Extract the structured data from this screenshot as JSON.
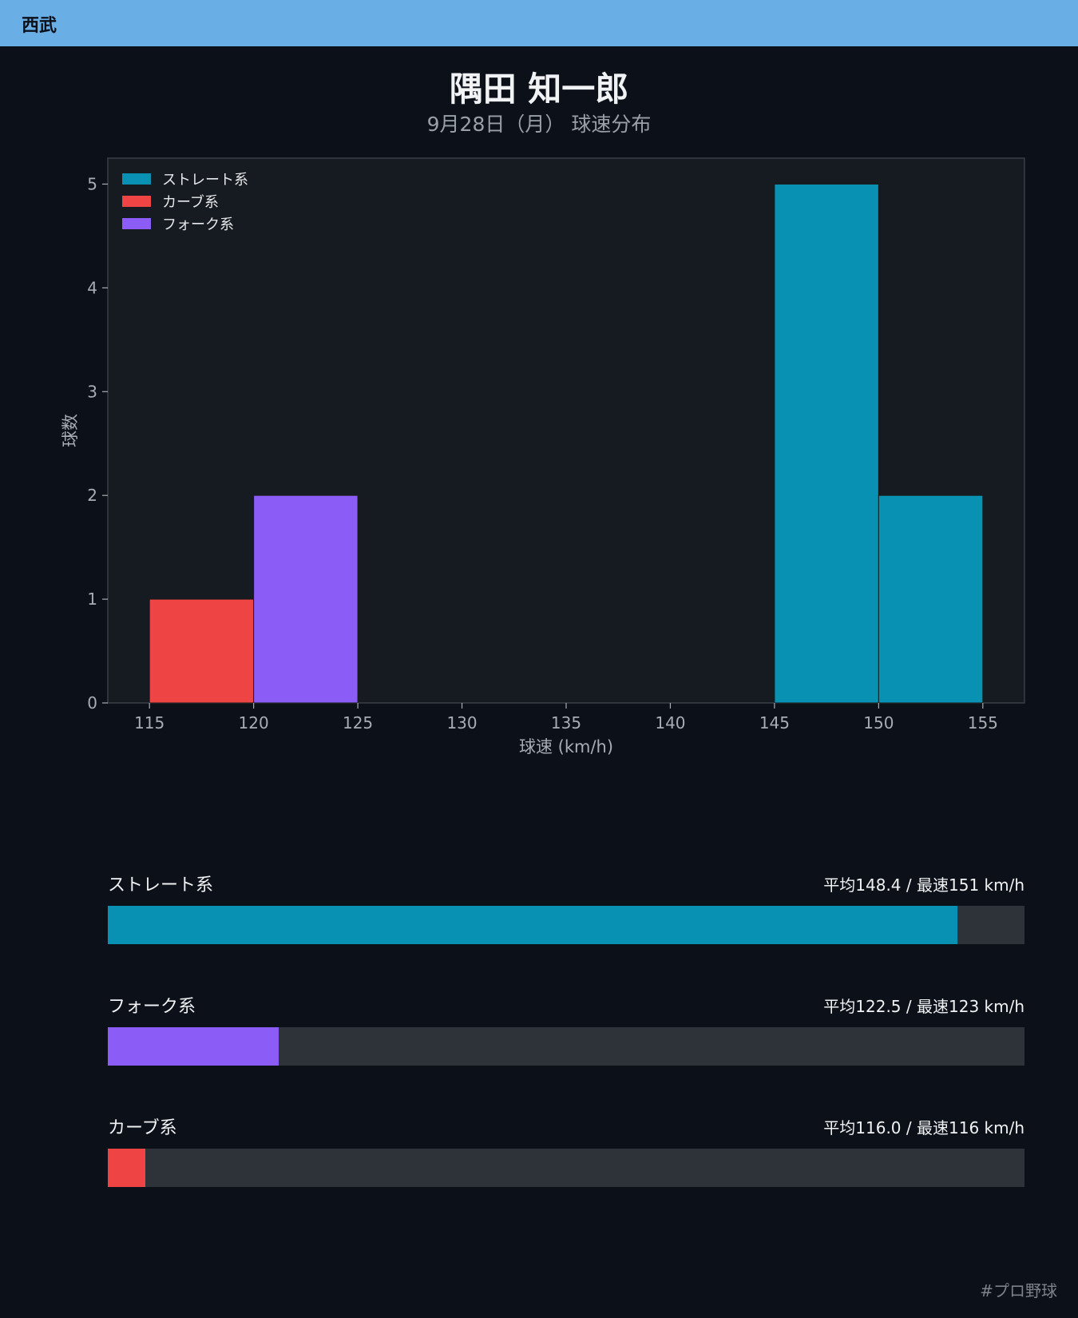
{
  "header": {
    "team": "西武"
  },
  "title": "隅田 知一郎",
  "subtitle": "9月28日（月） 球速分布",
  "chart_data": {
    "type": "bar",
    "title": "",
    "xlabel": "球速 (km/h)",
    "ylabel": "球数",
    "xlim": [
      113,
      157
    ],
    "ylim": [
      0,
      5.25
    ],
    "xticks": [
      115,
      120,
      125,
      130,
      135,
      140,
      145,
      150,
      155
    ],
    "yticks": [
      0,
      1,
      2,
      3,
      4,
      5
    ],
    "bin_width": 5,
    "legend": "top-left",
    "series": [
      {
        "name": "ストレート系",
        "color": "#0891b2",
        "bins": [
          {
            "start": 145,
            "count": 5
          },
          {
            "start": 150,
            "count": 2
          }
        ]
      },
      {
        "name": "カーブ系",
        "color": "#ef4444",
        "bins": [
          {
            "start": 115,
            "count": 1
          }
        ]
      },
      {
        "name": "フォーク系",
        "color": "#8b5cf6",
        "bins": [
          {
            "start": 120,
            "count": 2
          }
        ]
      }
    ]
  },
  "speed_bars": [
    {
      "name": "ストレート系",
      "stats": "平均148.4 / 最速151 km/h",
      "color": "#0891b2",
      "fraction": 0.927
    },
    {
      "name": "フォーク系",
      "stats": "平均122.5 / 最速123 km/h",
      "color": "#8b5cf6",
      "fraction": 0.186
    },
    {
      "name": "カーブ系",
      "stats": "平均116.0 / 最速116 km/h",
      "color": "#ef4444",
      "fraction": 0.041
    }
  ],
  "footer": {
    "hashtag": "#プロ野球"
  }
}
